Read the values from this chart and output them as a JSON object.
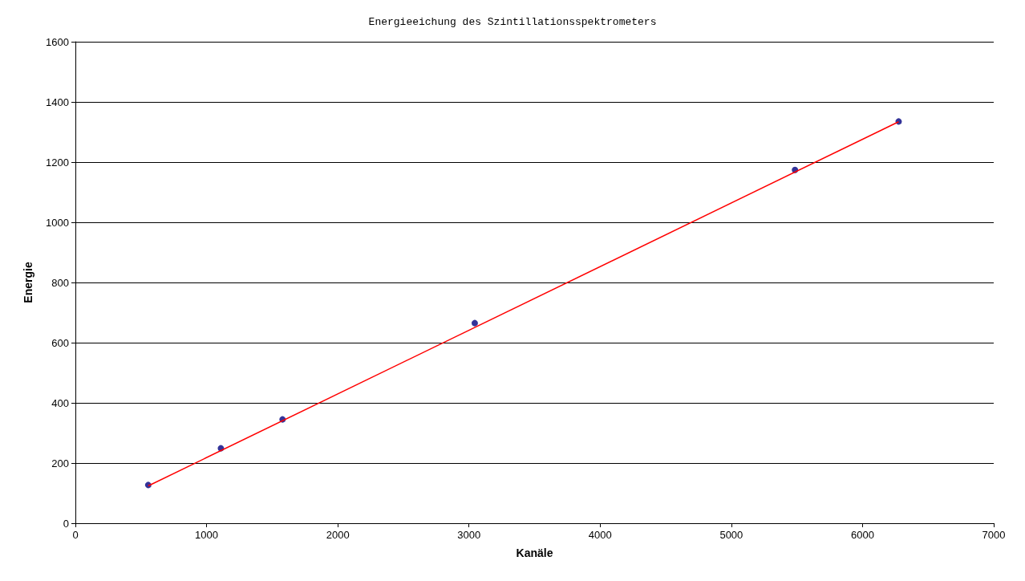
{
  "chart_data": {
    "type": "scatter",
    "title": "Energieeichung des Szintillationsspektrometers",
    "xlabel": "Kanäle",
    "ylabel": "Energie",
    "xlim": [
      0,
      7000
    ],
    "xticks": [
      0,
      1000,
      2000,
      3000,
      4000,
      5000,
      6000,
      7000
    ],
    "ylim": [
      0,
      1600
    ],
    "yticks": [
      0,
      200,
      400,
      600,
      800,
      1000,
      1200,
      1400,
      1600
    ],
    "grid": "y",
    "marker": "circle",
    "series": [
      {
        "type": "line",
        "color": "#ff0000",
        "x": [
          555,
          6275
        ],
        "values": [
          124,
          1334
        ],
        "marker": "none"
      },
      {
        "color": "#000080",
        "x": [
          555,
          1109,
          1579,
          3044,
          5485,
          6275
        ],
        "values": [
          127,
          249,
          345,
          665,
          1174,
          1335
        ]
      }
    ]
  }
}
